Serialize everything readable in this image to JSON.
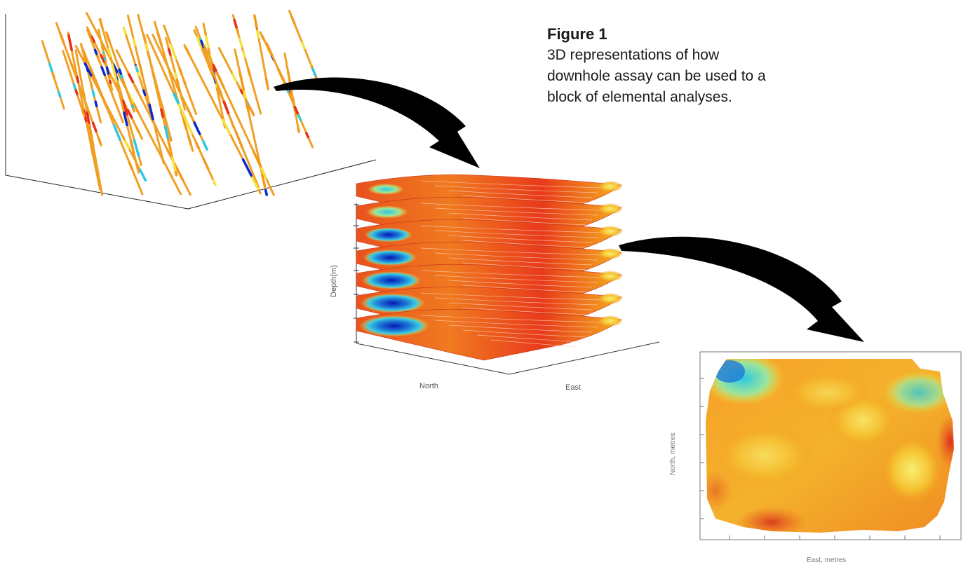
{
  "caption": {
    "title": "Figure 1",
    "body": "3D representations of how downhole assay can be used to a block of elemental analyses."
  },
  "block_model": {
    "axis_depth_label": "Depth(m)",
    "axis_north_label": "North",
    "axis_east_label": "East",
    "slice_count": 7
  },
  "plan_map": {
    "axis_north_label": "North, metres",
    "axis_east_label": "East, metres"
  },
  "colors": {
    "low": "#0a2ad0",
    "mid_low": "#2ec9e0",
    "mid": "#f5e23a",
    "high": "#f39a1a",
    "very_high": "#e63018",
    "arrow": "#000000"
  }
}
